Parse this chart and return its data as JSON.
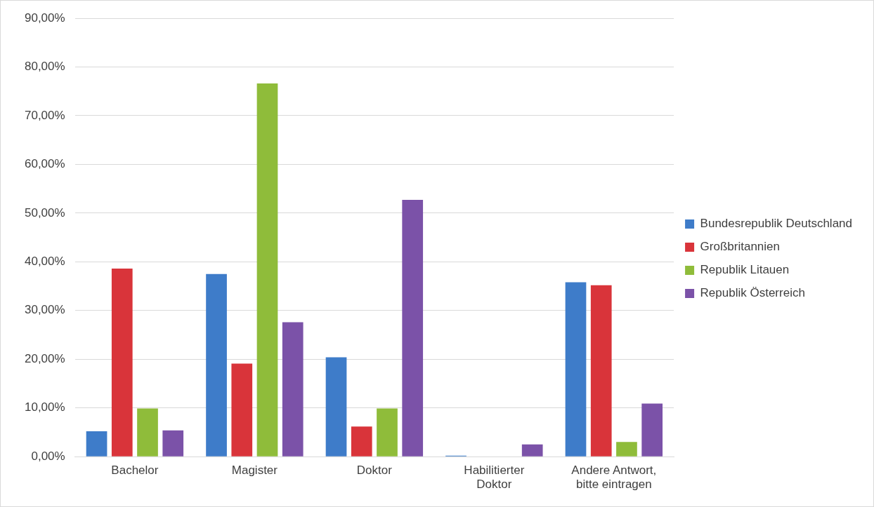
{
  "chart_data": {
    "type": "bar",
    "categories": [
      "Bachelor",
      "Magister",
      "Doktor",
      "Habilitierter Doktor",
      "Andere Antwort, bitte eintragen"
    ],
    "series": [
      {
        "name": "Bundesrepublik Deutschland",
        "color": "#3e7cc9",
        "values": [
          5.2,
          37.5,
          20.4,
          0.2,
          35.8
        ]
      },
      {
        "name": "Großbritannien",
        "color": "#d9343a",
        "values": [
          38.6,
          19.1,
          6.2,
          0,
          35.2
        ]
      },
      {
        "name": "Republik Litauen",
        "color": "#8fbc3a",
        "values": [
          9.9,
          76.6,
          9.9,
          0,
          3.0
        ]
      },
      {
        "name": "Republik Österreich",
        "color": "#7b52a8",
        "values": [
          5.4,
          27.6,
          52.7,
          2.5,
          10.9
        ]
      }
    ],
    "ylim": [
      0,
      90
    ],
    "yticks": [
      {
        "value": 0,
        "label": "0,00%"
      },
      {
        "value": 10,
        "label": "10,00%"
      },
      {
        "value": 20,
        "label": "20,00%"
      },
      {
        "value": 30,
        "label": "30,00%"
      },
      {
        "value": 40,
        "label": "40,00%"
      },
      {
        "value": 50,
        "label": "50,00%"
      },
      {
        "value": 60,
        "label": "60,00%"
      },
      {
        "value": 70,
        "label": "70,00%"
      },
      {
        "value": 80,
        "label": "80,00%"
      },
      {
        "value": 90,
        "label": "90,00%"
      }
    ],
    "grid": "y",
    "legend": "right"
  }
}
